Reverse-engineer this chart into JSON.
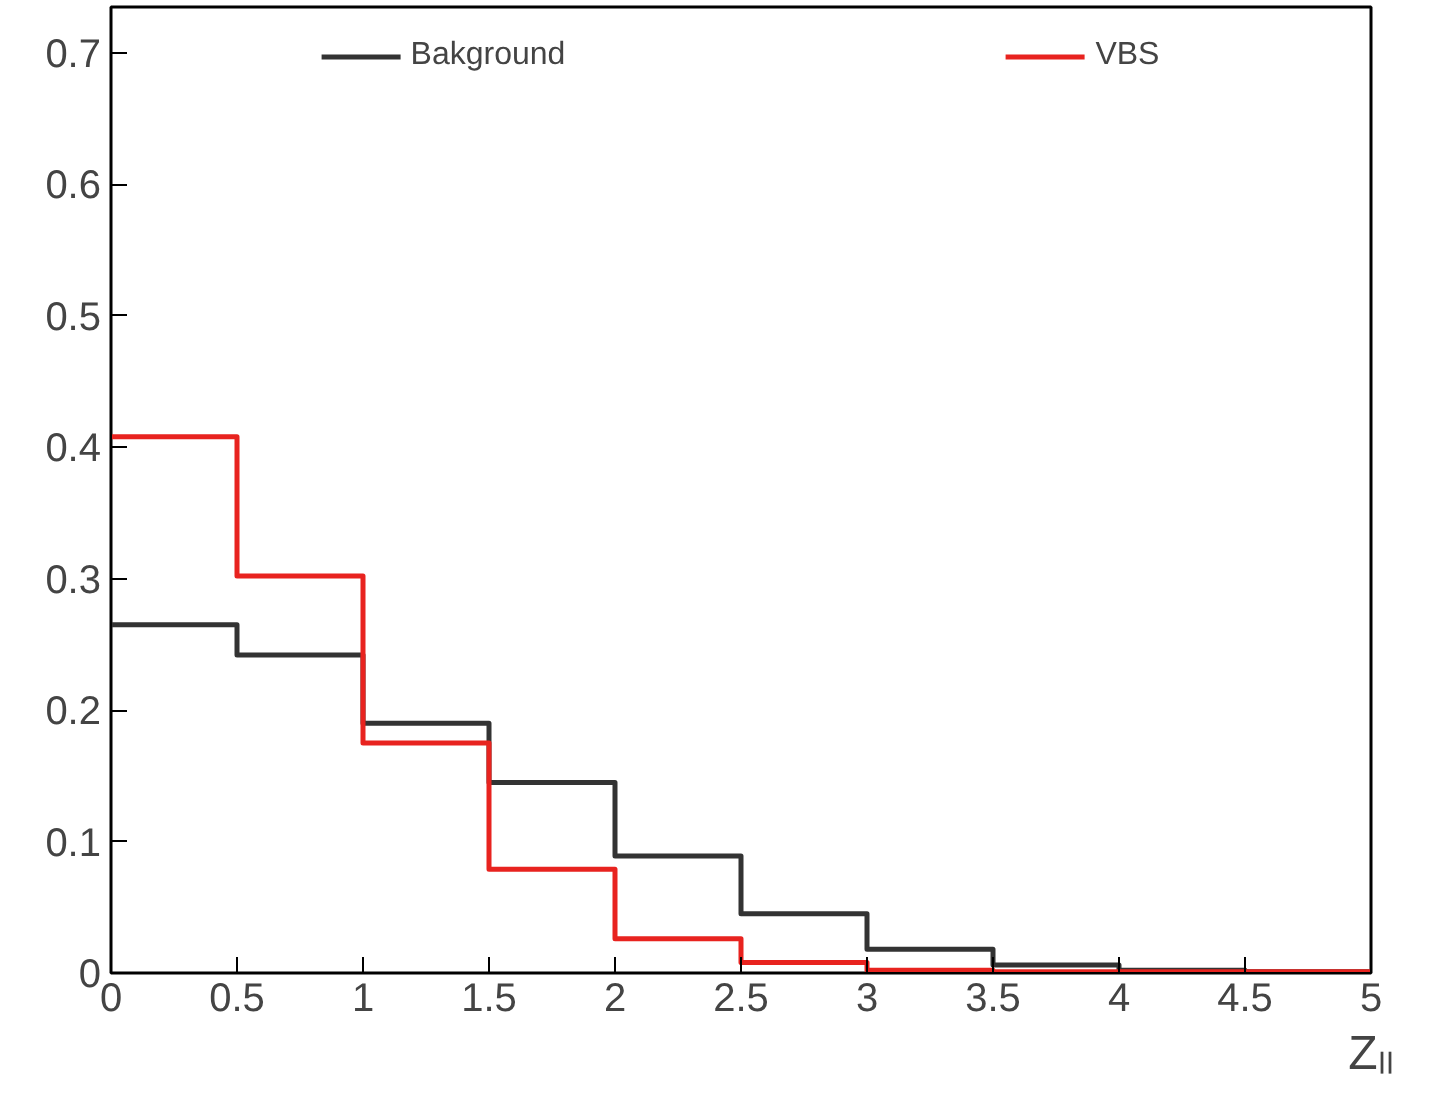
{
  "chart_data": {
    "type": "histogram",
    "xlabel": "Zₗₗ",
    "bins": [
      0,
      0.5,
      1,
      1.5,
      2,
      2.5,
      3,
      3.5,
      4,
      4.5,
      5
    ],
    "series": [
      {
        "name": "Bakground",
        "color": "#333333",
        "values": [
          0.265,
          0.242,
          0.19,
          0.145,
          0.089,
          0.045,
          0.018,
          0.006,
          0.002,
          0.001
        ]
      },
      {
        "name": "VBS",
        "color": "#e8231f",
        "values": [
          0.408,
          0.302,
          0.175,
          0.079,
          0.026,
          0.008,
          0.002,
          0.001,
          0.001,
          0.001
        ]
      }
    ],
    "xlim": [
      0,
      5
    ],
    "ylim": [
      0,
      0.735
    ],
    "xticks": [
      0,
      0.5,
      1,
      1.5,
      2,
      2.5,
      3,
      3.5,
      4,
      4.5,
      5
    ],
    "yticks": [
      0,
      0.1,
      0.2,
      0.3,
      0.4,
      0.5,
      0.6,
      0.7
    ],
    "grid": false,
    "legend": "top"
  }
}
